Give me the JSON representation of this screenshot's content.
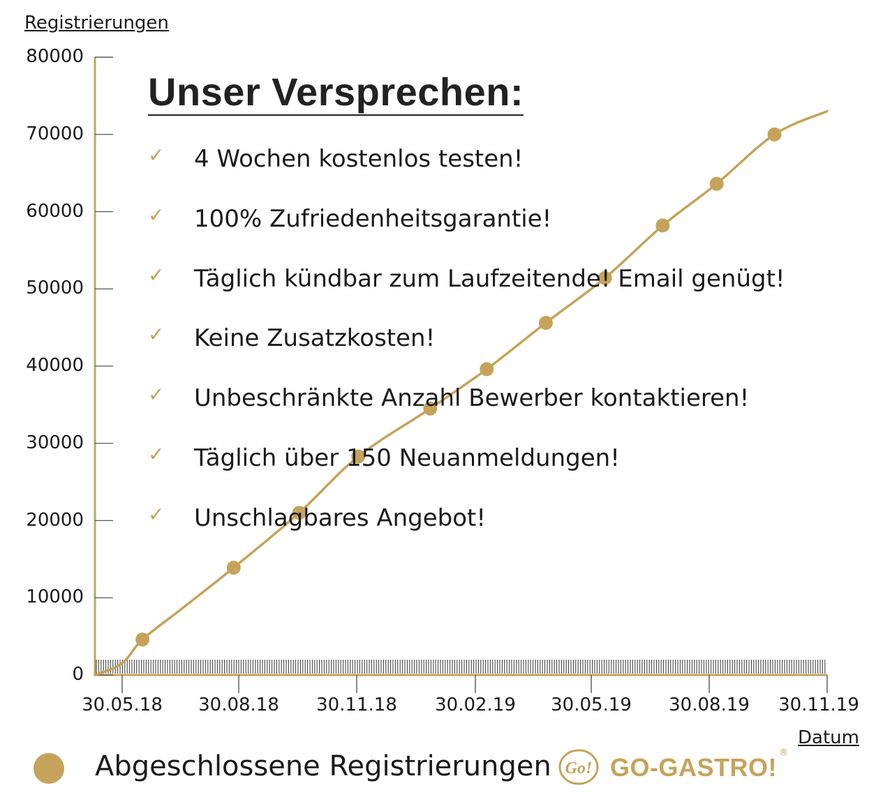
{
  "chart_data": {
    "type": "line",
    "ylabel": "Registrierungen",
    "xlabel": "Datum",
    "ylim": [
      0,
      80000
    ],
    "yticks": [
      "0",
      "10000",
      "20000",
      "30000",
      "40000",
      "50000",
      "60000",
      "70000",
      "80000"
    ],
    "xticks": [
      "30.05.18",
      "30.08.18",
      "30.11.18",
      "30.02.19",
      "30.05.19",
      "30.08.19",
      "30.11.19"
    ],
    "xlim": [
      "2018-05-09",
      "2019-11-30"
    ],
    "grid": false,
    "legend_position": "bottom-left",
    "series": [
      {
        "name": "Abgeschlossene Registrierungen",
        "color": "#c5a35a",
        "line": [
          {
            "x": "2018-05-09",
            "y": 0
          },
          {
            "x": "2018-05-30",
            "y": 1500
          },
          {
            "x": "2018-06-15",
            "y": 4600
          },
          {
            "x": "2018-07-15",
            "y": 8500
          },
          {
            "x": "2018-08-25",
            "y": 13900
          },
          {
            "x": "2018-10-15",
            "y": 21000
          },
          {
            "x": "2018-11-30",
            "y": 28300
          },
          {
            "x": "2019-01-25",
            "y": 34500
          },
          {
            "x": "2019-03-10",
            "y": 39600
          },
          {
            "x": "2019-04-25",
            "y": 45600
          },
          {
            "x": "2019-06-10",
            "y": 51400
          },
          {
            "x": "2019-07-25",
            "y": 58200
          },
          {
            "x": "2019-09-05",
            "y": 63600
          },
          {
            "x": "2019-10-20",
            "y": 70000
          },
          {
            "x": "2019-11-30",
            "y": 73000
          }
        ],
        "markers": [
          {
            "x": "2018-06-15",
            "y": 4600
          },
          {
            "x": "2018-08-25",
            "y": 13900
          },
          {
            "x": "2018-10-15",
            "y": 21000
          },
          {
            "x": "2018-11-30",
            "y": 28300
          },
          {
            "x": "2019-01-25",
            "y": 34500
          },
          {
            "x": "2019-03-10",
            "y": 39600
          },
          {
            "x": "2019-04-25",
            "y": 45600
          },
          {
            "x": "2019-06-10",
            "y": 51400
          },
          {
            "x": "2019-07-25",
            "y": 58200
          },
          {
            "x": "2019-09-05",
            "y": 63600
          },
          {
            "x": "2019-10-20",
            "y": 70000
          }
        ]
      }
    ]
  },
  "promise": {
    "title": "Unser Versprechen:",
    "check_icon": "check-icon",
    "items": [
      "4 Wochen kostenlos testen!",
      "100% Zufriedenheitsgarantie!",
      "Täglich kündbar zum Laufzeitende! Email genügt!",
      "Keine Zusatzkosten!",
      "Unbeschränkte Anzahl Bewerber kontaktieren!",
      "Täglich über 150 Neuanmeldungen!",
      "Unschlagbares Angebot!"
    ]
  },
  "legend": {
    "label": "Abgeschlossene Registrierungen",
    "marker_color": "#c5a35a"
  },
  "brand": {
    "name": "GO-GASTRO!",
    "registered": "®",
    "mark_text": "Go!",
    "color": "#c5a35a"
  }
}
